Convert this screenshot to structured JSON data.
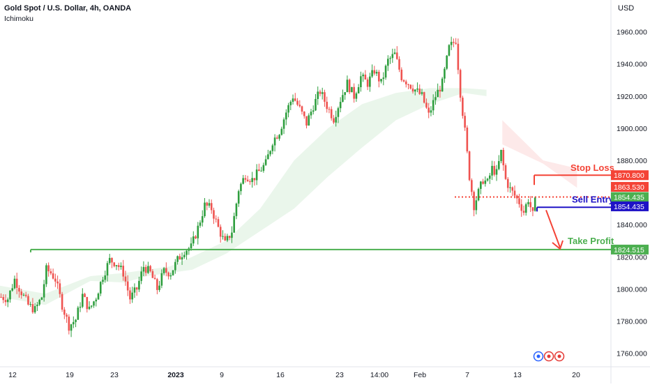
{
  "header": {
    "title": "Gold Spot / U.S. Dollar, 4h, OANDA",
    "indicator": "Ichimoku"
  },
  "axis": {
    "currency": "USD"
  },
  "chart_data": {
    "type": "candlestick",
    "ylim": [
      1752,
      1972
    ],
    "yticks": [
      {
        "value": 1960,
        "label": "1960.000"
      },
      {
        "value": 1940,
        "label": "1940.000"
      },
      {
        "value": 1920,
        "label": "1920.000"
      },
      {
        "value": 1900,
        "label": "1900.000"
      },
      {
        "value": 1880,
        "label": "1880.000"
      },
      {
        "value": 1840,
        "label": "1840.000"
      },
      {
        "value": 1820,
        "label": "1820.000"
      },
      {
        "value": 1800,
        "label": "1800.000"
      },
      {
        "value": 1780,
        "label": "1780.000"
      },
      {
        "value": 1760,
        "label": "1760.000"
      }
    ],
    "xticks": [
      {
        "label": "12",
        "bold": false
      },
      {
        "label": "19",
        "bold": false
      },
      {
        "label": "23",
        "bold": false
      },
      {
        "label": "2023",
        "bold": true
      },
      {
        "label": "9",
        "bold": false
      },
      {
        "label": "16",
        "bold": false
      },
      {
        "label": "23",
        "bold": false
      },
      {
        "label": "14:00",
        "bold": false
      },
      {
        "label": "Feb",
        "bold": false
      },
      {
        "label": "7",
        "bold": false
      },
      {
        "label": "13",
        "bold": false
      },
      {
        "label": "20",
        "bold": false
      }
    ],
    "price_path": [
      [
        0,
        1795
      ],
      [
        3,
        1794
      ],
      [
        6,
        1806
      ],
      [
        9,
        1798
      ],
      [
        12,
        1790
      ],
      [
        15,
        1787
      ],
      [
        18,
        1795
      ],
      [
        20,
        1812
      ],
      [
        22,
        1810
      ],
      [
        24,
        1806
      ],
      [
        27,
        1790
      ],
      [
        30,
        1777
      ],
      [
        33,
        1781
      ],
      [
        36,
        1796
      ],
      [
        39,
        1787
      ],
      [
        42,
        1795
      ],
      [
        45,
        1808
      ],
      [
        48,
        1818
      ],
      [
        51,
        1816
      ],
      [
        54,
        1810
      ],
      [
        57,
        1794
      ],
      [
        60,
        1800
      ],
      [
        63,
        1814
      ],
      [
        66,
        1810
      ],
      [
        69,
        1800
      ],
      [
        72,
        1811
      ],
      [
        75,
        1810
      ],
      [
        78,
        1818
      ],
      [
        81,
        1824
      ],
      [
        84,
        1826
      ],
      [
        87,
        1838
      ],
      [
        90,
        1852
      ],
      [
        93,
        1850
      ],
      [
        96,
        1838
      ],
      [
        99,
        1828
      ],
      [
        102,
        1836
      ],
      [
        105,
        1862
      ],
      [
        108,
        1871
      ],
      [
        111,
        1868
      ],
      [
        114,
        1873
      ],
      [
        117,
        1878
      ],
      [
        120,
        1892
      ],
      [
        123,
        1898
      ],
      [
        126,
        1910
      ],
      [
        129,
        1920
      ],
      [
        132,
        1912
      ],
      [
        135,
        1903
      ],
      [
        138,
        1914
      ],
      [
        141,
        1923
      ],
      [
        144,
        1914
      ],
      [
        147,
        1906
      ],
      [
        150,
        1918
      ],
      [
        153,
        1928
      ],
      [
        156,
        1920
      ],
      [
        159,
        1932
      ],
      [
        162,
        1928
      ],
      [
        165,
        1936
      ],
      [
        168,
        1928
      ],
      [
        171,
        1942
      ],
      [
        174,
        1946
      ],
      [
        177,
        1932
      ],
      [
        180,
        1928
      ],
      [
        183,
        1924
      ],
      [
        186,
        1920
      ],
      [
        189,
        1908
      ],
      [
        192,
        1920
      ],
      [
        195,
        1928
      ],
      [
        198,
        1950
      ],
      [
        201,
        1955
      ],
      [
        203,
        1922
      ],
      [
        205,
        1898
      ],
      [
        207,
        1870
      ],
      [
        209,
        1852
      ],
      [
        211,
        1860
      ],
      [
        213,
        1868
      ],
      [
        215,
        1866
      ],
      [
        217,
        1875
      ],
      [
        219,
        1872
      ],
      [
        221,
        1885
      ],
      [
        223,
        1868
      ],
      [
        225,
        1862
      ],
      [
        227,
        1858
      ],
      [
        229,
        1854
      ],
      [
        231,
        1848
      ],
      [
        233,
        1856
      ],
      [
        235,
        1846
      ],
      [
        236,
        1854
      ]
    ],
    "series": [
      {
        "name": "Ichimoku cloud",
        "values": [
          [
            0,
            1795,
            1802
          ],
          [
            20,
            1790,
            1797
          ],
          [
            40,
            1805,
            1808
          ],
          [
            55,
            1804,
            1810
          ],
          [
            65,
            1808,
            1812
          ],
          [
            75,
            1810,
            1814
          ],
          [
            85,
            1812,
            1820
          ],
          [
            100,
            1822,
            1830
          ],
          [
            115,
            1836,
            1850
          ],
          [
            130,
            1850,
            1880
          ],
          [
            145,
            1870,
            1900
          ],
          [
            160,
            1888,
            1915
          ],
          [
            175,
            1905,
            1922
          ],
          [
            190,
            1915,
            1925
          ],
          [
            205,
            1922,
            1925
          ],
          [
            215,
            1920,
            1924
          ]
        ]
      }
    ],
    "red_cloud": [
      [
        222,
        1905,
        1890
      ],
      [
        240,
        1878,
        1880
      ],
      [
        255,
        1875,
        1863
      ]
    ],
    "levels": {
      "take_profit": {
        "label": "Take Profit",
        "value": "1824.515",
        "price": 1824.515,
        "color": "#4caf50"
      },
      "stop_loss": {
        "label": "Stop Loss",
        "value": "1870.800",
        "price": 1870.8,
        "color": "#f44336"
      },
      "sell_entry": {
        "label": "Sell Entry",
        "value": "1854.435",
        "price": 1854.435,
        "color": "#1e12c6"
      },
      "tags": [
        {
          "value": "1870.800",
          "price": 1870.8,
          "color": "#f44336"
        },
        {
          "value": "1863.530",
          "price": 1863.53,
          "color": "#f44336"
        },
        {
          "value": "1854.435",
          "price": 1857.2,
          "color": "#4caf50"
        },
        {
          "value": "1854.435",
          "price": 1851.4,
          "color": "#1e12c6"
        }
      ]
    }
  },
  "colors": {
    "up": "#26a69a",
    "upbar": "#2e9e3e",
    "down": "#ef5350",
    "cloud_green": "#e8f5e9",
    "cloud_red": "#fde7e7"
  }
}
